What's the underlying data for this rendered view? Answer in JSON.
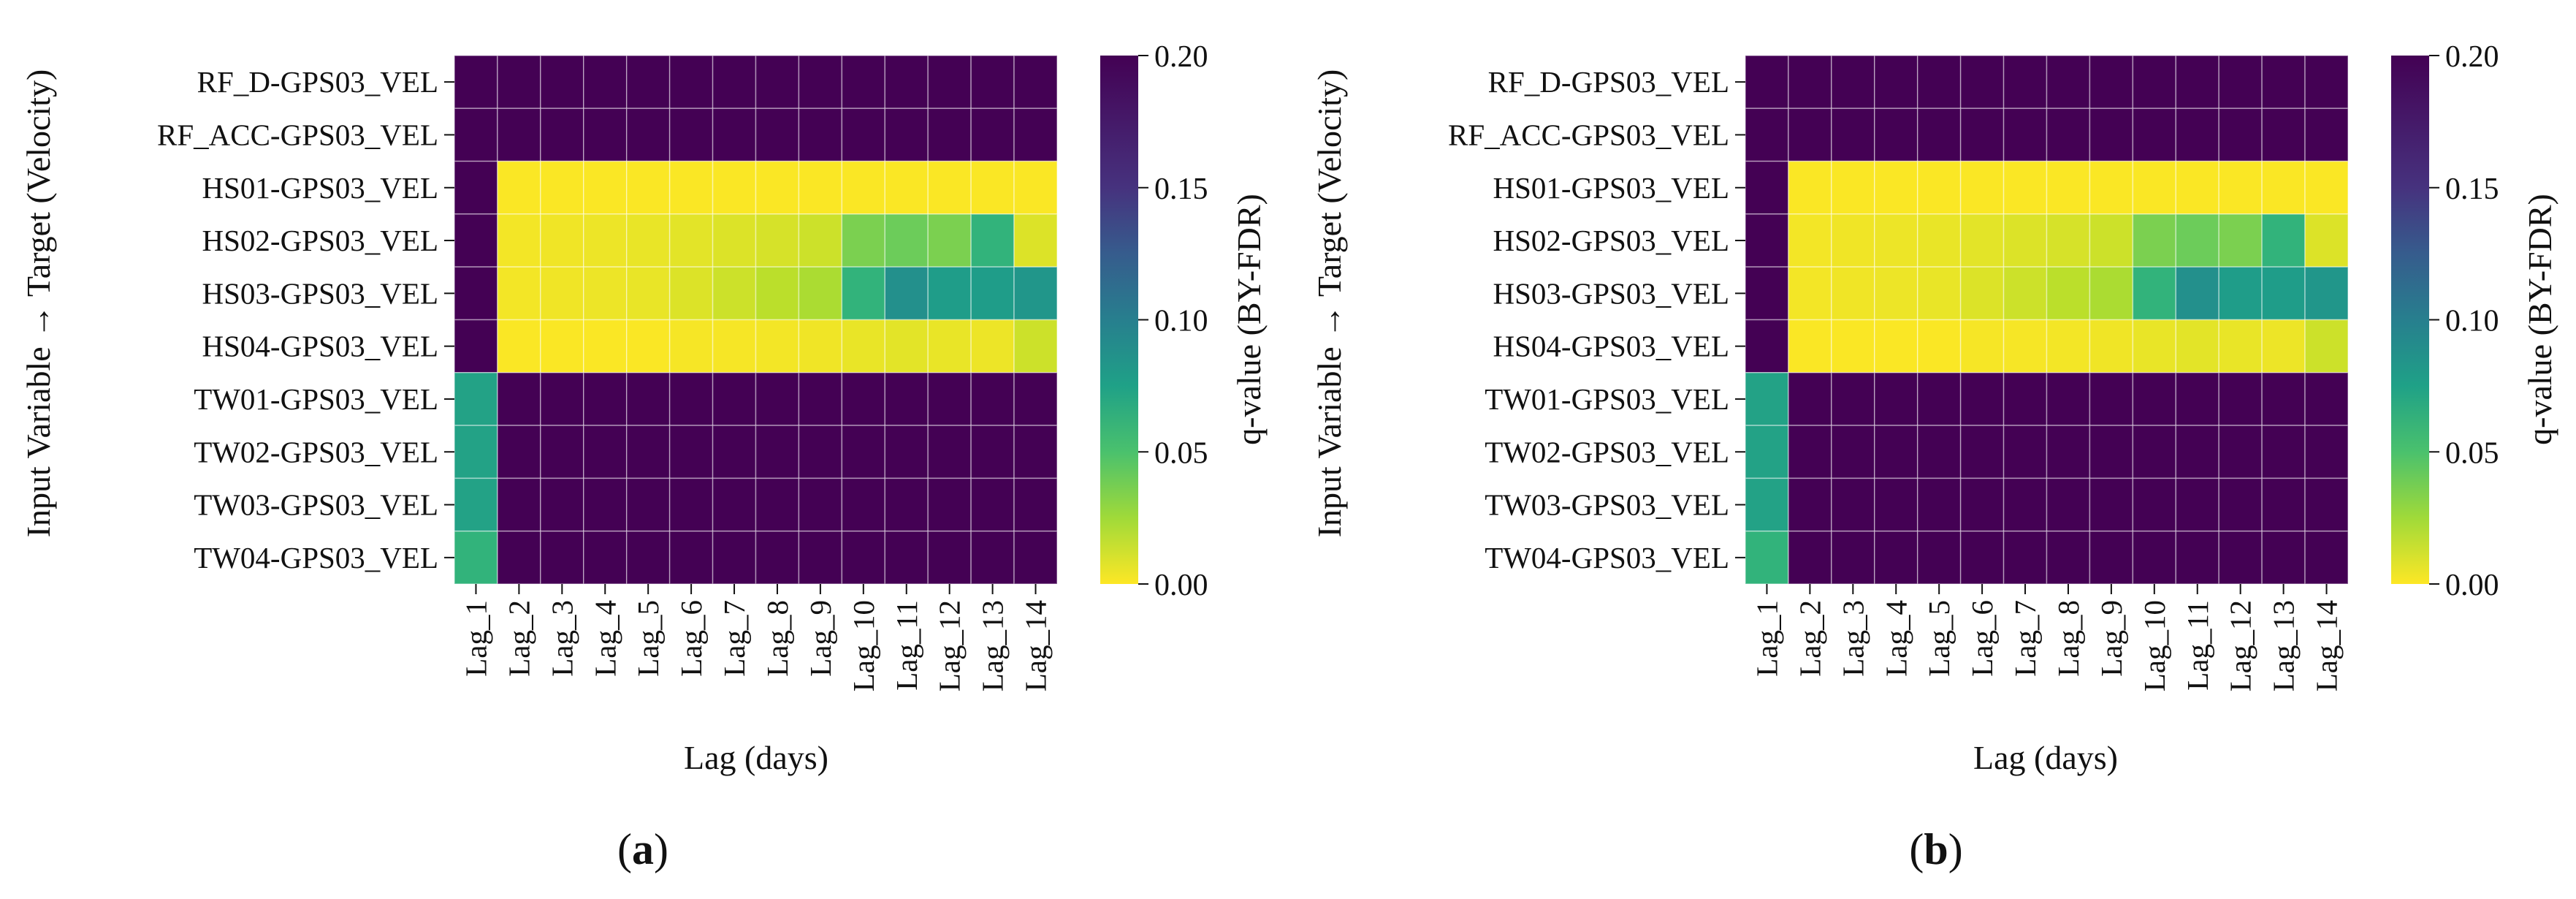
{
  "chart_data": [
    {
      "type": "heatmap",
      "panel_label": {
        "open": "(",
        "letter": "a",
        "close": ")"
      },
      "xlabel": "Lag (days)",
      "ylabel": "Input Variable → Target (Velocity)",
      "colorbar_label": "q-value (BY-FDR)",
      "colormap": "viridis_r",
      "vmin": 0.0,
      "vmax": 0.2,
      "colorbar_ticks": [
        "0.00",
        "0.05",
        "0.10",
        "0.15",
        "0.20"
      ],
      "x_categories": [
        "Lag_1",
        "Lag_2",
        "Lag_3",
        "Lag_4",
        "Lag_5",
        "Lag_6",
        "Lag_7",
        "Lag_8",
        "Lag_9",
        "Lag_10",
        "Lag_11",
        "Lag_12",
        "Lag_13",
        "Lag_14"
      ],
      "y_categories": [
        "RF_D-GPS03_VEL",
        "RF_ACC-GPS03_VEL",
        "HS01-GPS03_VEL",
        "HS02-GPS03_VEL",
        "HS03-GPS03_VEL",
        "HS04-GPS03_VEL",
        "TW01-GPS03_VEL",
        "TW02-GPS03_VEL",
        "TW03-GPS03_VEL",
        "TW04-GPS03_VEL"
      ],
      "values": [
        [
          0.2,
          0.2,
          0.2,
          0.2,
          0.2,
          0.2,
          0.2,
          0.2,
          0.2,
          0.2,
          0.2,
          0.2,
          0.2,
          0.2
        ],
        [
          0.2,
          0.2,
          0.2,
          0.2,
          0.2,
          0.2,
          0.2,
          0.2,
          0.2,
          0.2,
          0.2,
          0.2,
          0.2,
          0.2
        ],
        [
          0.2,
          0.001,
          0.001,
          0.001,
          0.001,
          0.001,
          0.001,
          0.001,
          0.001,
          0.001,
          0.001,
          0.001,
          0.001,
          0.001
        ],
        [
          0.2,
          0.003,
          0.004,
          0.005,
          0.006,
          0.008,
          0.01,
          0.012,
          0.015,
          0.04,
          0.045,
          0.04,
          0.07,
          0.01
        ],
        [
          0.2,
          0.003,
          0.004,
          0.005,
          0.006,
          0.01,
          0.015,
          0.02,
          0.025,
          0.07,
          0.1,
          0.09,
          0.09,
          0.095
        ],
        [
          0.2,
          0.001,
          0.001,
          0.001,
          0.001,
          0.002,
          0.002,
          0.003,
          0.004,
          0.006,
          0.008,
          0.006,
          0.005,
          0.015
        ],
        [
          0.085,
          0.2,
          0.2,
          0.2,
          0.2,
          0.2,
          0.2,
          0.2,
          0.2,
          0.2,
          0.2,
          0.2,
          0.2,
          0.2
        ],
        [
          0.085,
          0.2,
          0.2,
          0.2,
          0.2,
          0.2,
          0.2,
          0.2,
          0.2,
          0.2,
          0.2,
          0.2,
          0.2,
          0.2
        ],
        [
          0.085,
          0.2,
          0.2,
          0.2,
          0.2,
          0.2,
          0.2,
          0.2,
          0.2,
          0.2,
          0.2,
          0.2,
          0.2,
          0.2
        ],
        [
          0.07,
          0.2,
          0.2,
          0.2,
          0.2,
          0.2,
          0.2,
          0.2,
          0.2,
          0.2,
          0.2,
          0.2,
          0.2,
          0.2
        ]
      ]
    },
    {
      "type": "heatmap",
      "panel_label": {
        "open": "(",
        "letter": "b",
        "close": ")"
      },
      "xlabel": "Lag (days)",
      "ylabel": "Input Variable → Target (Velocity)",
      "colorbar_label": "q-value (BY-FDR)",
      "colormap": "viridis_r",
      "vmin": 0.0,
      "vmax": 0.2,
      "colorbar_ticks": [
        "0.00",
        "0.05",
        "0.10",
        "0.15",
        "0.20"
      ],
      "x_categories": [
        "Lag_1",
        "Lag_2",
        "Lag_3",
        "Lag_4",
        "Lag_5",
        "Lag_6",
        "Lag_7",
        "Lag_8",
        "Lag_9",
        "Lag_10",
        "Lag_11",
        "Lag_12",
        "Lag_13",
        "Lag_14"
      ],
      "y_categories": [
        "RF_D-GPS03_VEL",
        "RF_ACC-GPS03_VEL",
        "HS01-GPS03_VEL",
        "HS02-GPS03_VEL",
        "HS03-GPS03_VEL",
        "HS04-GPS03_VEL",
        "TW01-GPS03_VEL",
        "TW02-GPS03_VEL",
        "TW03-GPS03_VEL",
        "TW04-GPS03_VEL"
      ],
      "values": [
        [
          0.2,
          0.2,
          0.2,
          0.2,
          0.2,
          0.2,
          0.2,
          0.2,
          0.2,
          0.2,
          0.2,
          0.2,
          0.2,
          0.2
        ],
        [
          0.2,
          0.2,
          0.2,
          0.2,
          0.2,
          0.2,
          0.2,
          0.2,
          0.2,
          0.2,
          0.2,
          0.2,
          0.2,
          0.2
        ],
        [
          0.2,
          0.001,
          0.001,
          0.001,
          0.001,
          0.001,
          0.001,
          0.001,
          0.001,
          0.001,
          0.001,
          0.001,
          0.001,
          0.001
        ],
        [
          0.2,
          0.003,
          0.004,
          0.005,
          0.006,
          0.008,
          0.01,
          0.012,
          0.015,
          0.04,
          0.045,
          0.04,
          0.07,
          0.01
        ],
        [
          0.2,
          0.003,
          0.004,
          0.005,
          0.006,
          0.01,
          0.015,
          0.02,
          0.025,
          0.07,
          0.1,
          0.09,
          0.09,
          0.095
        ],
        [
          0.2,
          0.001,
          0.001,
          0.001,
          0.001,
          0.002,
          0.002,
          0.003,
          0.004,
          0.006,
          0.008,
          0.006,
          0.005,
          0.015
        ],
        [
          0.085,
          0.2,
          0.2,
          0.2,
          0.2,
          0.2,
          0.2,
          0.2,
          0.2,
          0.2,
          0.2,
          0.2,
          0.2,
          0.2
        ],
        [
          0.085,
          0.2,
          0.2,
          0.2,
          0.2,
          0.2,
          0.2,
          0.2,
          0.2,
          0.2,
          0.2,
          0.2,
          0.2,
          0.2
        ],
        [
          0.085,
          0.2,
          0.2,
          0.2,
          0.2,
          0.2,
          0.2,
          0.2,
          0.2,
          0.2,
          0.2,
          0.2,
          0.2,
          0.2
        ],
        [
          0.07,
          0.2,
          0.2,
          0.2,
          0.2,
          0.2,
          0.2,
          0.2,
          0.2,
          0.2,
          0.2,
          0.2,
          0.2,
          0.2
        ]
      ]
    }
  ]
}
